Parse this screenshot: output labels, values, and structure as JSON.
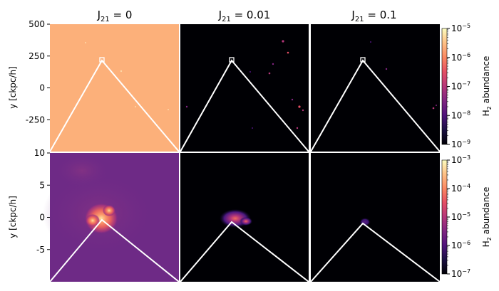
{
  "chart_data": {
    "type": "heatmap",
    "column_titles": [
      {
        "base": "J",
        "sub": "21",
        "rest": " = 0"
      },
      {
        "base": "J",
        "sub": "21",
        "rest": " = 0.01"
      },
      {
        "base": "J",
        "sub": "21",
        "rest": " = 0.1"
      }
    ],
    "rows": [
      {
        "ylabel": "y [ckpc/h]",
        "ylim": [
          -500,
          500
        ],
        "yticks": [
          500,
          250,
          0,
          -250
        ],
        "ytick_labels": [
          "500",
          "250",
          "0",
          "-250"
        ],
        "colorbar": {
          "label_prefix": "H",
          "label_sub": "2",
          "label_suffix": " abundance",
          "scale": "log",
          "range": [
            1e-09,
            1e-05
          ],
          "ticks": [
            {
              "base": "10",
              "exp": "−5"
            },
            {
              "base": "10",
              "exp": "−6"
            },
            {
              "base": "10",
              "exp": "−7"
            },
            {
              "base": "10",
              "exp": "−8"
            },
            {
              "base": "10",
              "exp": "−9"
            }
          ]
        },
        "panels": [
          {
            "column": "J21 = 0",
            "background": "#fcb07a"
          },
          {
            "column": "J21 = 0.01",
            "background": "#000004"
          },
          {
            "column": "J21 = 0.1",
            "background": "#000004"
          }
        ]
      },
      {
        "ylabel": "y [ckpc/h]",
        "ylim": [
          -10,
          10
        ],
        "yticks": [
          10,
          5,
          0,
          -5
        ],
        "ytick_labels": [
          "10",
          "5",
          "0",
          "-5"
        ],
        "colorbar": {
          "label_prefix": "H",
          "label_sub": "2",
          "label_suffix": " abundance",
          "scale": "log",
          "range": [
            1e-07,
            0.001
          ],
          "ticks": [
            {
              "base": "10",
              "exp": "−3"
            },
            {
              "base": "10",
              "exp": "−4"
            },
            {
              "base": "10",
              "exp": "−5"
            },
            {
              "base": "10",
              "exp": "−6"
            },
            {
              "base": "10",
              "exp": "−7"
            }
          ]
        },
        "panels": [
          {
            "column": "J21 = 0",
            "background": "#6e2a86"
          },
          {
            "column": "J21 = 0.01",
            "background": "#000004"
          },
          {
            "column": "J21 = 0.1",
            "background": "#000004"
          }
        ]
      }
    ],
    "colormap": "magma"
  }
}
